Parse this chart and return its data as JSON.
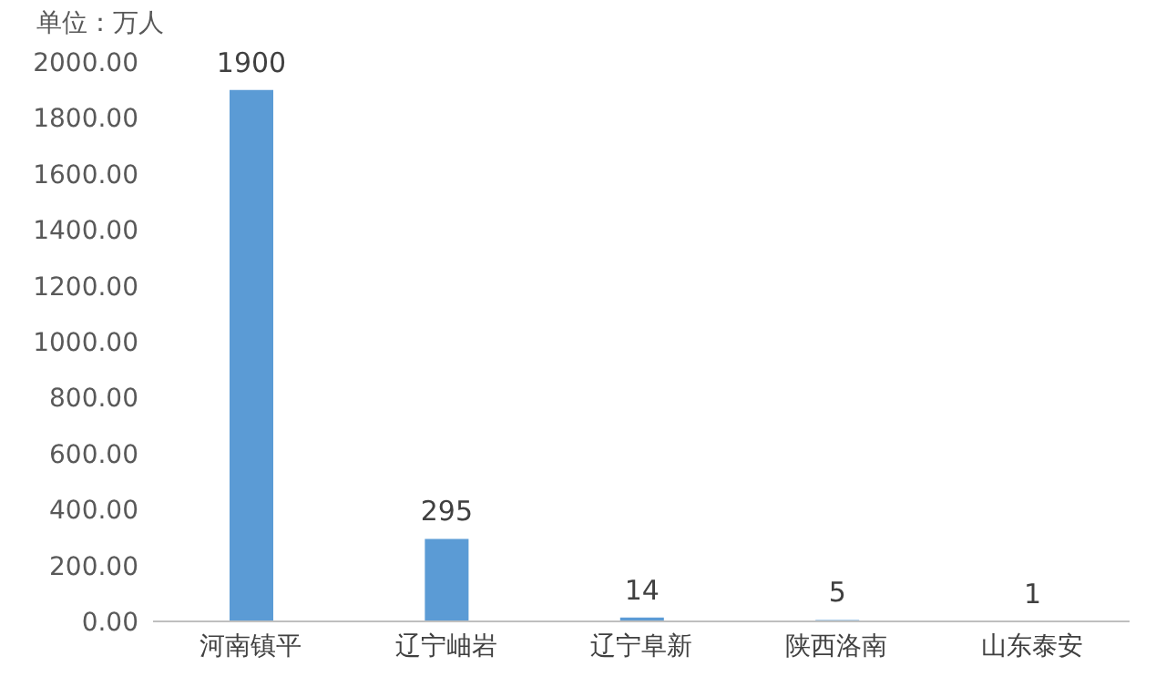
{
  "chart_data": {
    "type": "bar",
    "ylabel": "单位：万人",
    "categories": [
      "河南镇平",
      "辽宁岫岩",
      "辽宁阜新",
      "陕西洛南",
      "山东泰安"
    ],
    "values": [
      1900,
      295,
      14,
      5,
      1
    ],
    "color": "#5b9bd5",
    "ylim": [
      0,
      2000
    ],
    "yticks": [
      {
        "value": 0,
        "label": "0.00"
      },
      {
        "value": 200,
        "label": "200.00"
      },
      {
        "value": 400,
        "label": "400.00"
      },
      {
        "value": 600,
        "label": "600.00"
      },
      {
        "value": 800,
        "label": "800.00"
      },
      {
        "value": 1000,
        "label": "1000.00"
      },
      {
        "value": 1200,
        "label": "1200.00"
      },
      {
        "value": 1400,
        "label": "1400.00"
      },
      {
        "value": 1600,
        "label": "1600.00"
      },
      {
        "value": 1800,
        "label": "1800.00"
      },
      {
        "value": 2000,
        "label": "2000.00"
      }
    ],
    "grid": false,
    "data_labels": true,
    "legend": false
  }
}
